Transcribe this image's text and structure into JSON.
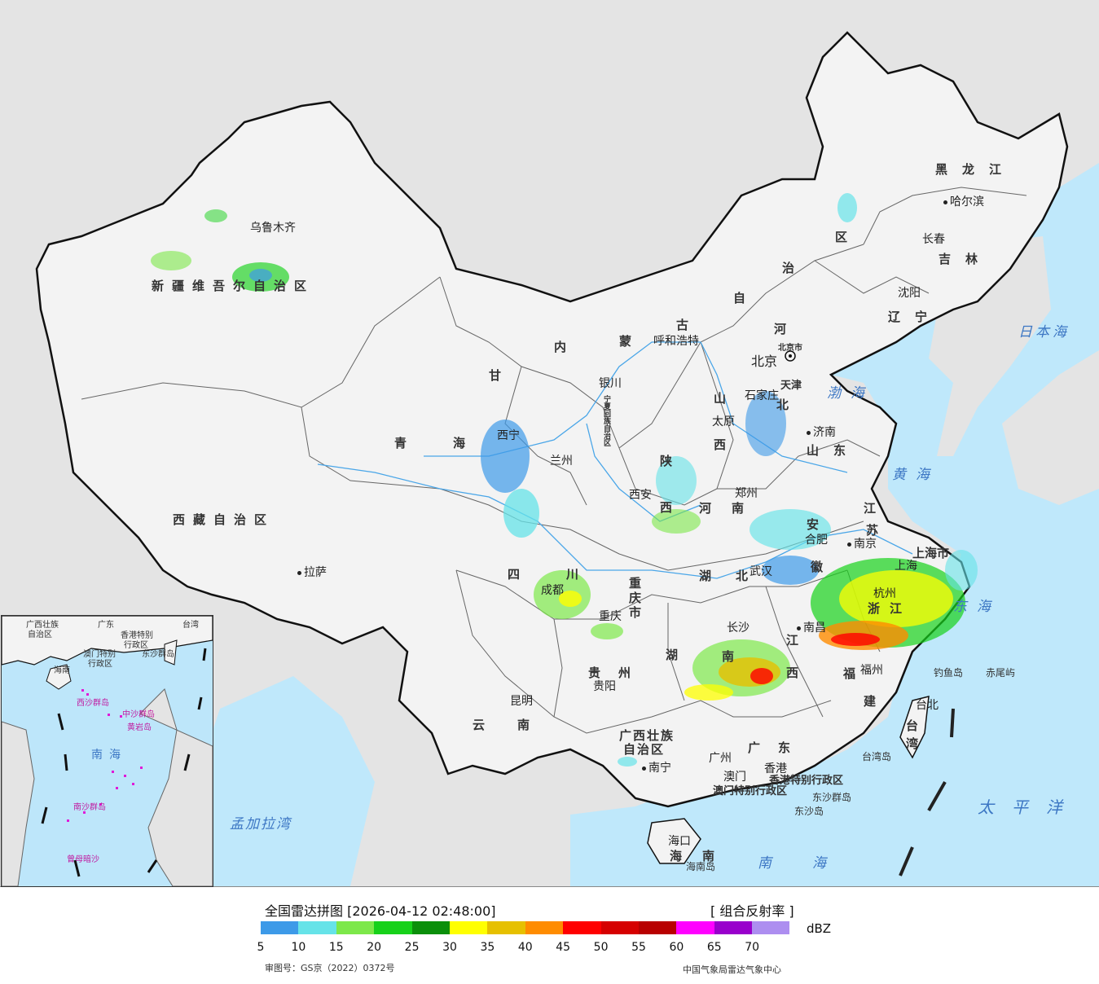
{
  "map": {
    "regions": [
      {
        "id": "xinjiang",
        "label": "新疆维吾尔自治区"
      },
      {
        "id": "xizang",
        "label": "西藏自治区"
      },
      {
        "id": "qinghai1",
        "label": "青"
      },
      {
        "id": "qinghai2",
        "label": "海"
      },
      {
        "id": "gansu",
        "label": "甘"
      },
      {
        "id": "nm1",
        "label": "内"
      },
      {
        "id": "nm2",
        "label": "蒙"
      },
      {
        "id": "nm3",
        "label": "古"
      },
      {
        "id": "nm4",
        "label": "自"
      },
      {
        "id": "nm5",
        "label": "治"
      },
      {
        "id": "nm6",
        "label": "区"
      },
      {
        "id": "heilongjiang",
        "label": "黑龙江"
      },
      {
        "id": "jilin",
        "label": "吉林"
      },
      {
        "id": "liaoning",
        "label": "辽宁"
      },
      {
        "id": "hebei1",
        "label": "河"
      },
      {
        "id": "hebei2",
        "label": "北"
      },
      {
        "id": "shanxi1",
        "label": "山"
      },
      {
        "id": "shanxi2",
        "label": "西"
      },
      {
        "id": "shaanxi1",
        "label": "陕"
      },
      {
        "id": "shaanxi2",
        "label": "西"
      },
      {
        "id": "ningxia",
        "label": "宁夏回族自治区"
      },
      {
        "id": "shandong",
        "label": "山东"
      },
      {
        "id": "henan",
        "label": "河南"
      },
      {
        "id": "jiangsu1",
        "label": "江"
      },
      {
        "id": "jiangsu2",
        "label": "苏"
      },
      {
        "id": "anhui1",
        "label": "安"
      },
      {
        "id": "anhui2",
        "label": "徽"
      },
      {
        "id": "hubei",
        "label": "湖北"
      },
      {
        "id": "sichuan1",
        "label": "四"
      },
      {
        "id": "sichuan2",
        "label": "川"
      },
      {
        "id": "chongqing",
        "label": "重庆市"
      },
      {
        "id": "zhejiang",
        "label": "浙江"
      },
      {
        "id": "jiangxi1",
        "label": "江"
      },
      {
        "id": "jiangxi2",
        "label": "西"
      },
      {
        "id": "hunan1",
        "label": "湖"
      },
      {
        "id": "hunan2",
        "label": "南"
      },
      {
        "id": "guizhou",
        "label": "贵州"
      },
      {
        "id": "yunnan",
        "label": "云南"
      },
      {
        "id": "guangxi1",
        "label": "广西壮族"
      },
      {
        "id": "guangxi2",
        "label": "自治区"
      },
      {
        "id": "guangdong",
        "label": "广东"
      },
      {
        "id": "fujian1",
        "label": "福"
      },
      {
        "id": "fujian2",
        "label": "建"
      },
      {
        "id": "taiwan1",
        "label": "台"
      },
      {
        "id": "taiwan2",
        "label": "湾"
      },
      {
        "id": "hainan1",
        "label": "海"
      },
      {
        "id": "hainan2",
        "label": "南"
      },
      {
        "id": "shanghai",
        "label": "上海市"
      },
      {
        "id": "tianjin",
        "label": "天津"
      },
      {
        "id": "beijing",
        "label": "北京市"
      },
      {
        "id": "hk",
        "label": "香港特别行政区"
      },
      {
        "id": "macau",
        "label": "澳门特别行政区"
      }
    ],
    "cities": {
      "urumqi": "乌鲁木齐",
      "lhasa": "拉萨",
      "xining": "西宁",
      "lanzhou": "兰州",
      "yinchuan": "银川",
      "hohhot": "呼和浩特",
      "harbin": "哈尔滨",
      "changchun": "长春",
      "shenyang": "沈阳",
      "beijing": "北京",
      "shijiazhuang": "石家庄",
      "taiyuan": "太原",
      "jinan": "济南",
      "zhengzhou": "郑州",
      "xian": "西安",
      "hefei": "合肥",
      "nanjing": "南京",
      "shanghai": "上海",
      "wuhan": "武汉",
      "chengdu": "成都",
      "chongqing": "重庆",
      "nanchang": "南昌",
      "changsha": "长沙",
      "guiyang": "贵阳",
      "kunming": "昆明",
      "nanning": "南宁",
      "guangzhou": "广州",
      "fuzhou": "福州",
      "taibei": "台北",
      "haikou": "海口",
      "hongkong": "香港",
      "macau": "澳门",
      "hangzhou": "杭州"
    },
    "seas": {
      "bohai": "渤海",
      "huanghai": "黄海",
      "donghai": "东海",
      "nanhai": "南海",
      "ribenhai": "日本海",
      "taipingyang": "太平洋",
      "mengjiala": "孟加拉湾"
    },
    "islands": {
      "diaoyu": "钓鱼岛",
      "chiwei": "赤尾屿",
      "taiwandao": "台湾岛",
      "dongsha1": "东沙群岛",
      "dongsha2": "东沙岛",
      "hainandao": "海南岛"
    },
    "inset": {
      "labels": [
        "广西壮族",
        "自治区",
        "广东",
        "澳门特别",
        "行政区",
        "香港特别",
        "行政区",
        "台湾",
        "东沙群岛",
        "海南",
        "西沙群岛",
        "中沙群岛",
        "黄岩岛",
        "南海",
        "南沙群岛",
        "曾母暗沙"
      ]
    }
  },
  "legend": {
    "title": "全国雷达拼图 [2026-04-12 02:48:00]",
    "product": "[ 组合反射率 ]",
    "unit": "dBZ",
    "ticks": [
      "5",
      "10",
      "15",
      "20",
      "25",
      "30",
      "35",
      "40",
      "45",
      "50",
      "55",
      "60",
      "65",
      "70"
    ],
    "colors": [
      "#3d9ae8",
      "#66e3e8",
      "#7de84a",
      "#17d11a",
      "#0b8f0b",
      "#ffff00",
      "#e6c000",
      "#ff8c00",
      "#ff0000",
      "#d60000",
      "#b80000",
      "#ff00ff",
      "#9900cc",
      "#ad8ef0"
    ],
    "approval": "审图号：GS京（2022）0372号",
    "source": "中国气象局雷达气象中心"
  }
}
